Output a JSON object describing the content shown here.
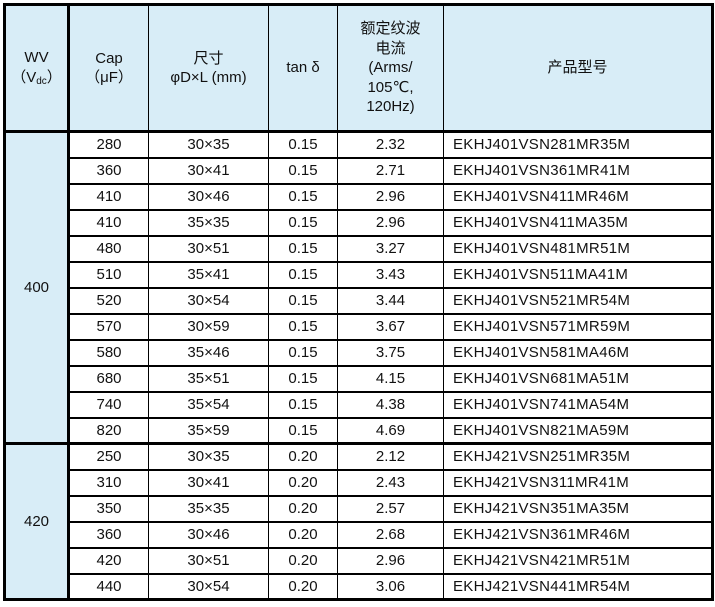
{
  "colors": {
    "header_bg": "#d8edf7",
    "border": "#000000",
    "cell_bg": "#ffffff",
    "text": "#111111"
  },
  "table": {
    "header": {
      "wv_line1": "WV",
      "wv_paren_open": "（V",
      "wv_sub": "dc",
      "wv_paren_close": "）",
      "cap_line1": "Cap",
      "cap_line2": "（μF）",
      "size_line1": "尺寸",
      "size_line2": "φD×L (mm)",
      "tan": "tan δ",
      "ripple_line1": "额定纹波",
      "ripple_line2": "电流",
      "ripple_line3": "(Arms/",
      "ripple_line4": "105℃,",
      "ripple_line5": "120Hz)",
      "model": "产品型号"
    },
    "groups": [
      {
        "wv": "400",
        "rows": [
          {
            "cap": "280",
            "size": "30×35",
            "tan": "0.15",
            "ripple": "2.32",
            "model": "EKHJ401VSN281MR35M"
          },
          {
            "cap": "360",
            "size": "30×41",
            "tan": "0.15",
            "ripple": "2.71",
            "model": "EKHJ401VSN361MR41M"
          },
          {
            "cap": "410",
            "size": "30×46",
            "tan": "0.15",
            "ripple": "2.96",
            "model": "EKHJ401VSN411MR46M"
          },
          {
            "cap": "410",
            "size": "35×35",
            "tan": "0.15",
            "ripple": "2.96",
            "model": "EKHJ401VSN411MA35M"
          },
          {
            "cap": "480",
            "size": "30×51",
            "tan": "0.15",
            "ripple": "3.27",
            "model": "EKHJ401VSN481MR51M"
          },
          {
            "cap": "510",
            "size": "35×41",
            "tan": "0.15",
            "ripple": "3.43",
            "model": "EKHJ401VSN511MA41M"
          },
          {
            "cap": "520",
            "size": "30×54",
            "tan": "0.15",
            "ripple": "3.44",
            "model": "EKHJ401VSN521MR54M"
          },
          {
            "cap": "570",
            "size": "30×59",
            "tan": "0.15",
            "ripple": "3.67",
            "model": "EKHJ401VSN571MR59M"
          },
          {
            "cap": "580",
            "size": "35×46",
            "tan": "0.15",
            "ripple": "3.75",
            "model": "EKHJ401VSN581MA46M"
          },
          {
            "cap": "680",
            "size": "35×51",
            "tan": "0.15",
            "ripple": "4.15",
            "model": "EKHJ401VSN681MA51M"
          },
          {
            "cap": "740",
            "size": "35×54",
            "tan": "0.15",
            "ripple": "4.38",
            "model": "EKHJ401VSN741MA54M"
          },
          {
            "cap": "820",
            "size": "35×59",
            "tan": "0.15",
            "ripple": "4.69",
            "model": "EKHJ401VSN821MA59M"
          }
        ]
      },
      {
        "wv": "420",
        "rows": [
          {
            "cap": "250",
            "size": "30×35",
            "tan": "0.20",
            "ripple": "2.12",
            "model": "EKHJ421VSN251MR35M"
          },
          {
            "cap": "310",
            "size": "30×41",
            "tan": "0.20",
            "ripple": "2.43",
            "model": "EKHJ421VSN311MR41M"
          },
          {
            "cap": "350",
            "size": "35×35",
            "tan": "0.20",
            "ripple": "2.57",
            "model": "EKHJ421VSN351MA35M"
          },
          {
            "cap": "360",
            "size": "30×46",
            "tan": "0.20",
            "ripple": "2.68",
            "model": "EKHJ421VSN361MR46M"
          },
          {
            "cap": "420",
            "size": "30×51",
            "tan": "0.20",
            "ripple": "2.96",
            "model": "EKHJ421VSN421MR51M"
          },
          {
            "cap": "440",
            "size": "30×54",
            "tan": "0.20",
            "ripple": "3.06",
            "model": "EKHJ421VSN441MR54M"
          }
        ]
      }
    ]
  }
}
